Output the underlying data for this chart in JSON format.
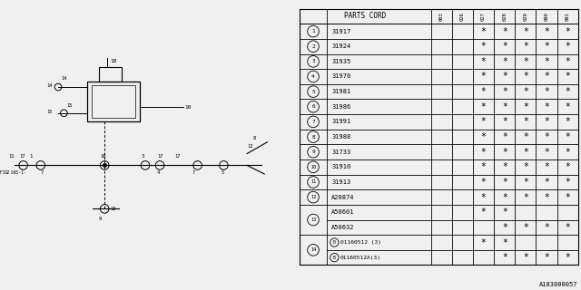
{
  "title": "A183000057",
  "parts_header": "PARTS CORD",
  "col_headers": [
    "003",
    "026",
    "027",
    "028",
    "029",
    "090",
    "091"
  ],
  "visual_rows": [
    {
      "label": "1",
      "code": "31917",
      "marks": [
        0,
        0,
        1,
        1,
        1,
        1,
        1
      ],
      "type": "num"
    },
    {
      "label": "2",
      "code": "31924",
      "marks": [
        0,
        0,
        1,
        1,
        1,
        1,
        1
      ],
      "type": "num"
    },
    {
      "label": "3",
      "code": "31935",
      "marks": [
        0,
        0,
        1,
        1,
        1,
        1,
        1
      ],
      "type": "num"
    },
    {
      "label": "4",
      "code": "31970",
      "marks": [
        0,
        0,
        1,
        1,
        1,
        1,
        1
      ],
      "type": "num"
    },
    {
      "label": "5",
      "code": "31981",
      "marks": [
        0,
        0,
        1,
        1,
        1,
        1,
        1
      ],
      "type": "num"
    },
    {
      "label": "6",
      "code": "31986",
      "marks": [
        0,
        0,
        1,
        1,
        1,
        1,
        1
      ],
      "type": "num"
    },
    {
      "label": "7",
      "code": "31991",
      "marks": [
        0,
        0,
        1,
        1,
        1,
        1,
        1
      ],
      "type": "num"
    },
    {
      "label": "8",
      "code": "31988",
      "marks": [
        0,
        0,
        1,
        1,
        1,
        1,
        1
      ],
      "type": "num"
    },
    {
      "label": "9",
      "code": "31733",
      "marks": [
        0,
        0,
        1,
        1,
        1,
        1,
        1
      ],
      "type": "num"
    },
    {
      "label": "10",
      "code": "31910",
      "marks": [
        0,
        0,
        1,
        1,
        1,
        1,
        1
      ],
      "type": "num"
    },
    {
      "label": "11",
      "code": "31913",
      "marks": [
        0,
        0,
        1,
        1,
        1,
        1,
        1
      ],
      "type": "num"
    },
    {
      "label": "12",
      "code": "A20874",
      "marks": [
        0,
        0,
        1,
        1,
        1,
        1,
        1
      ],
      "type": "num"
    },
    {
      "label": "13",
      "code": "A50601",
      "marks": [
        0,
        0,
        1,
        1,
        0,
        0,
        0
      ],
      "type": "merge_a"
    },
    {
      "label": "13",
      "code": "A50632",
      "marks": [
        0,
        0,
        0,
        1,
        1,
        1,
        1
      ],
      "type": "merge_b"
    },
    {
      "label": "14",
      "code": "01160512 (3)",
      "marks": [
        0,
        0,
        1,
        1,
        0,
        0,
        0
      ],
      "type": "B_merge_a"
    },
    {
      "label": "14",
      "code": "01160512A(3)",
      "marks": [
        0,
        0,
        0,
        1,
        1,
        1,
        1
      ],
      "type": "B_merge_b"
    }
  ],
  "bg_color": "#f0f0f0",
  "diagram_bg": "#f0f0f0",
  "table_bg": "#ffffff"
}
